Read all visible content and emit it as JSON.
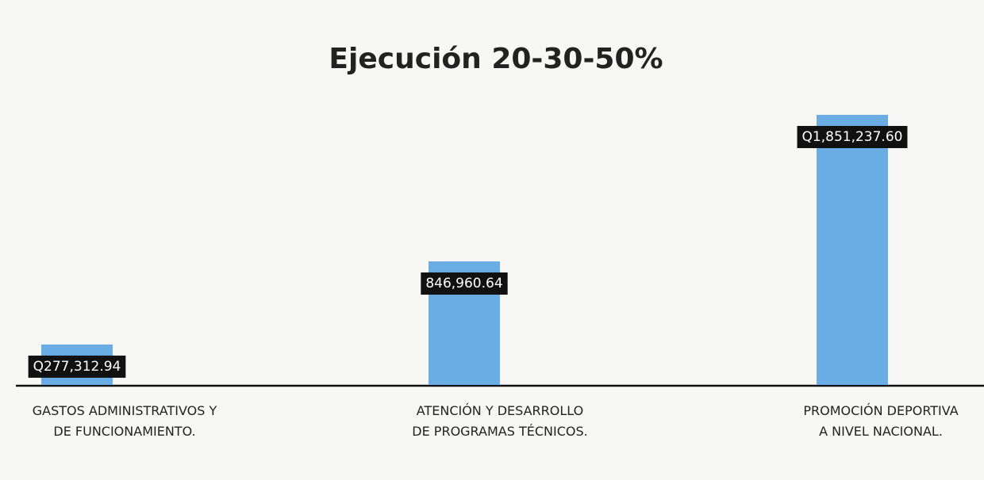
{
  "chart_data": {
    "type": "bar",
    "title": "Ejecución 20-30-50%",
    "categories": [
      "GASTOS ADMINISTRATIVOS Y DE FUNCIONAMIENTO.",
      "ATENCIÓN Y DESARROLLO DE PROGRAMAS TÉCNICOS.",
      "PROMOCIÓN DEPORTIVA A NIVEL NACIONAL."
    ],
    "values": [
      277312.94,
      846960.64,
      1851237.6
    ],
    "value_labels": [
      "Q277,312.94",
      "846,960.64",
      "Q1,851,237.60"
    ],
    "color": "#6aade4"
  }
}
